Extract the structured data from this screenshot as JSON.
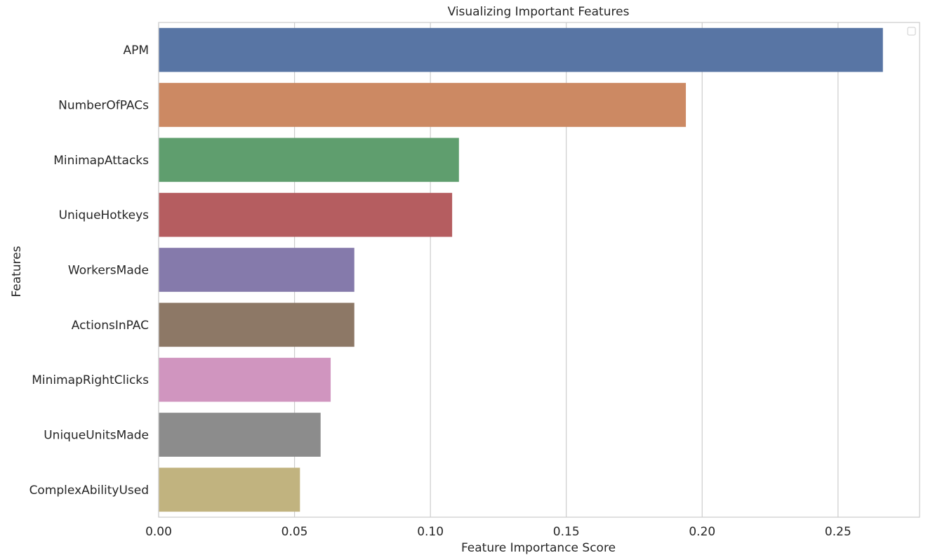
{
  "chart_data": {
    "type": "bar",
    "orientation": "horizontal",
    "title": "Visualizing Important Features",
    "xlabel": "Feature Importance Score",
    "ylabel": "Features",
    "xlim": [
      0,
      0.28
    ],
    "xticks": [
      "0.00",
      "0.05",
      "0.10",
      "0.15",
      "0.20",
      "0.25"
    ],
    "grid": true,
    "legend": "top-right, empty",
    "categories": [
      "APM",
      "NumberOfPACs",
      "MinimapAttacks",
      "UniqueHotkeys",
      "WorkersMade",
      "ActionsInPAC",
      "MinimapRightClicks",
      "UniqueUnitsMade",
      "ComplexAbilityUsed"
    ],
    "values": [
      0.2665,
      0.194,
      0.1105,
      0.108,
      0.072,
      0.072,
      0.0633,
      0.0596,
      0.052
    ],
    "colors": [
      "#5875a4",
      "#cc8963",
      "#5f9e6e",
      "#b55d60",
      "#857aab",
      "#8d7866",
      "#d095bf",
      "#8c8c8c",
      "#c1b37f"
    ]
  }
}
